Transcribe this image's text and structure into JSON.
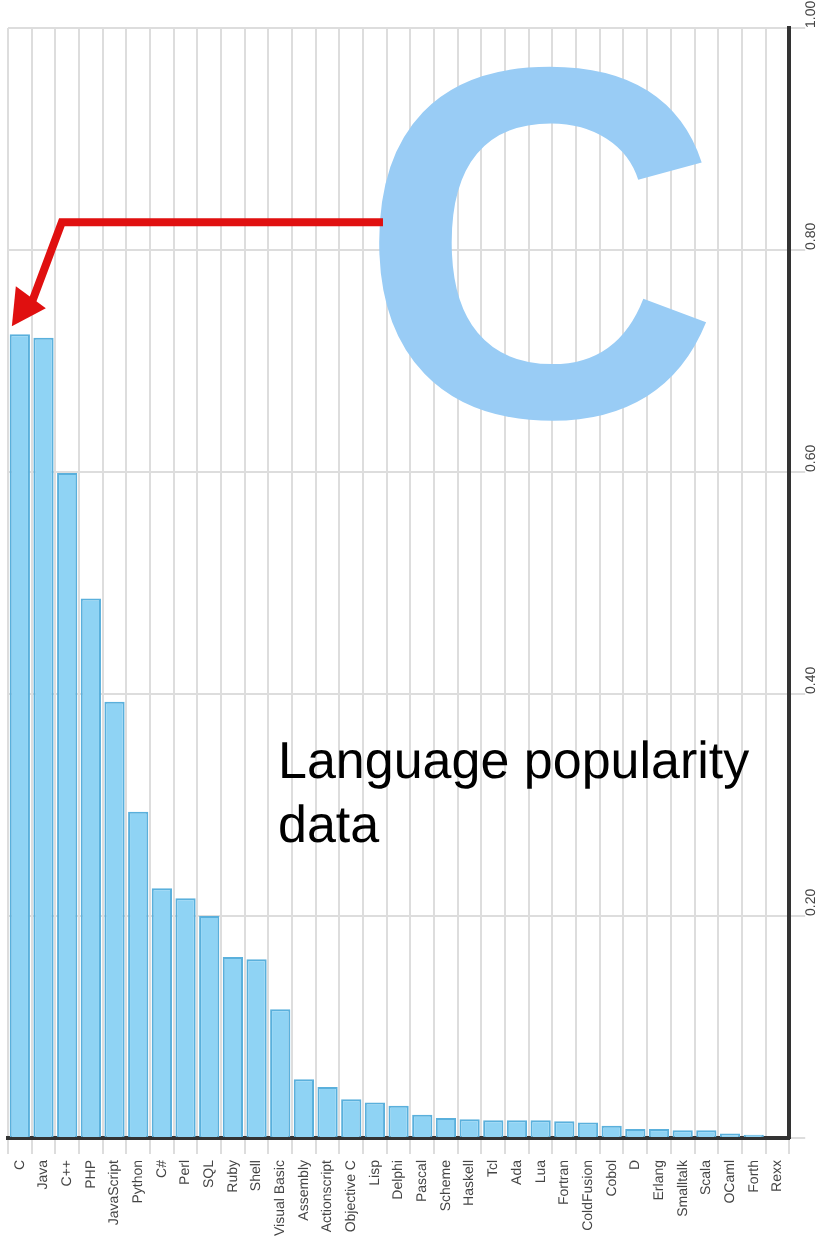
{
  "chart_data": {
    "type": "bar",
    "categories": [
      "C",
      "Java",
      "C++",
      "PHP",
      "JavaScript",
      "Python",
      "C#",
      "Perl",
      "SQL",
      "Ruby",
      "Shell",
      "Visual Basic",
      "Assembly",
      "Actionscript",
      "Objective C",
      "Lisp",
      "Delphi",
      "Pascal",
      "Scheme",
      "Haskell",
      "Tcl",
      "Ada",
      "Lua",
      "Fortran",
      "ColdFusion",
      "Cobol",
      "D",
      "Erlang",
      "Smalltalk",
      "Scala",
      "OCaml",
      "Forth",
      "Rexx"
    ],
    "values": [
      0.724,
      0.721,
      0.599,
      0.486,
      0.393,
      0.294,
      0.225,
      0.216,
      0.2,
      0.163,
      0.161,
      0.116,
      0.053,
      0.046,
      0.035,
      0.032,
      0.029,
      0.021,
      0.018,
      0.017,
      0.016,
      0.016,
      0.016,
      0.015,
      0.014,
      0.011,
      0.008,
      0.008,
      0.007,
      0.007,
      0.004,
      0.003,
      0
    ],
    "color": "#8fd3f4",
    "ylim": [
      0,
      1
    ],
    "yticks": [
      {
        "value": 0,
        "label": null
      },
      {
        "value": 0.2,
        "label": "0.20"
      },
      {
        "value": 0.4,
        "label": "0.40"
      },
      {
        "value": 0.6,
        "label": "0.60"
      },
      {
        "value": 0.8,
        "label": "0.80"
      },
      {
        "value": 1,
        "label": "1.00"
      }
    ],
    "grid": true,
    "annotations": [
      "C",
      "Language popularity data"
    ]
  }
}
